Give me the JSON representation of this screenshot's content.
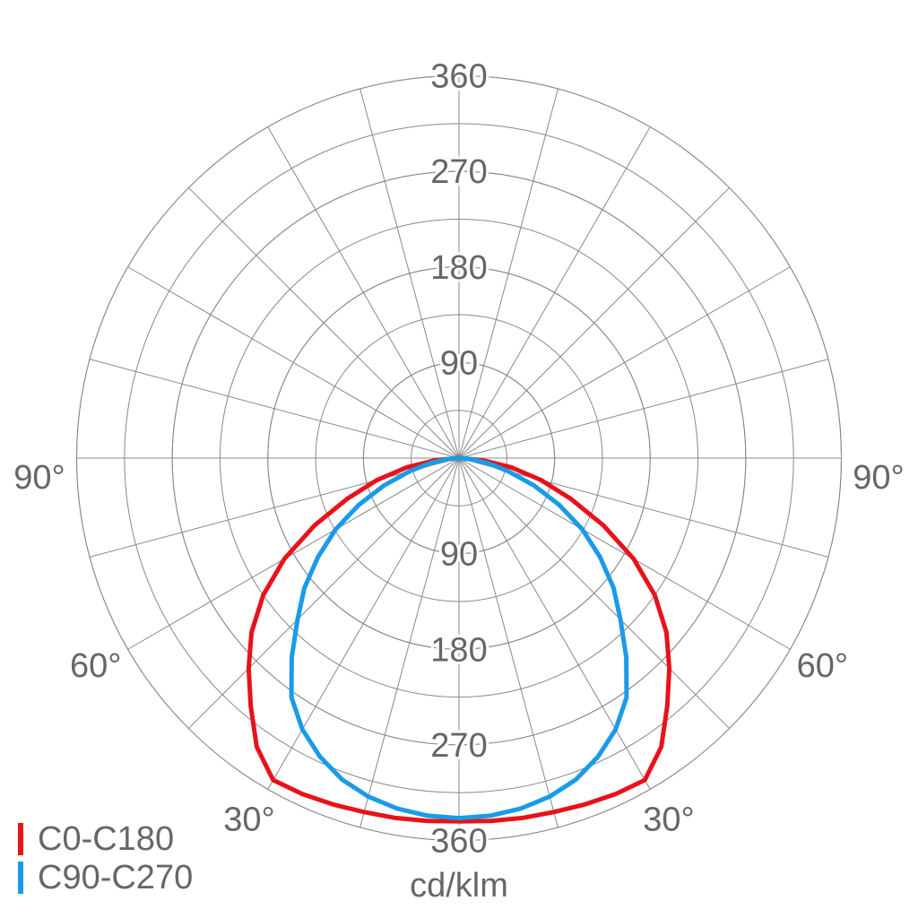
{
  "chart_data": {
    "type": "polar",
    "unit_label": "cd/klm",
    "angles": [
      0,
      5,
      10,
      15,
      20,
      25,
      30,
      35,
      40,
      45,
      50,
      55,
      60,
      65,
      70,
      75,
      80,
      85,
      90
    ],
    "series": [
      {
        "name": "C0-C180",
        "color": "#e8121a",
        "values": [
          342,
          343,
          344,
          345,
          347,
          349,
          350,
          332,
          305,
          280,
          255,
          225,
          190,
          150,
          112,
          80,
          50,
          22,
          0
        ]
      },
      {
        "name": "C90-C270",
        "color": "#1a9be8",
        "values": [
          339,
          338,
          335,
          330,
          322,
          310,
          295,
          275,
          245,
          215,
          190,
          162,
          134,
          104,
          75,
          48,
          28,
          12,
          0
        ]
      }
    ],
    "rlim": [
      0,
      360
    ],
    "rticks": [
      90,
      180,
      270,
      360
    ],
    "r_grid_step": 45,
    "angle_ticks": [
      {
        "value": 30,
        "label": "30°"
      },
      {
        "value": 60,
        "label": "60°"
      },
      {
        "value": 90,
        "label": "90°"
      }
    ],
    "angle_grid_step": 15,
    "grid": true
  }
}
